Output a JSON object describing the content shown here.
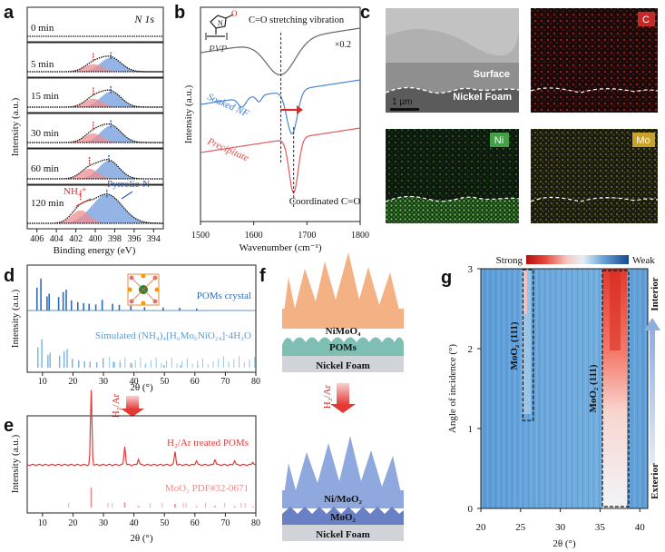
{
  "panel_labels": [
    "a",
    "b",
    "c",
    "d",
    "e",
    "f",
    "g"
  ],
  "panel_a": {
    "title": "N 1s",
    "times": [
      "0 min",
      "5 min",
      "15 min",
      "30 min",
      "60 min",
      "120 min"
    ],
    "peak_labels": [
      "NH₄⁺",
      "Pyrrolic-N"
    ],
    "xlabel": "Binding energy (eV)",
    "ylabel": "Intensity (a.u.)",
    "xticks": [
      "406",
      "404",
      "402",
      "400",
      "398",
      "396",
      "394"
    ]
  },
  "panel_b": {
    "molecule": "PVP",
    "annotation": "C=O stretching vibration",
    "scale": "×0.2",
    "traces": [
      "PVP",
      "Soaked NF",
      "Precipitate"
    ],
    "coord_label": "Coordinated C=O",
    "xlabel": "Wavenumber (cm⁻¹)",
    "ylabel": "Intensity (a.u.)",
    "xticks": [
      "1500",
      "1600",
      "1700",
      "1800"
    ]
  },
  "panel_c": {
    "surface": "Surface",
    "substrate": "Nickel Foam",
    "scalebar": "1 μm",
    "maps": [
      "C",
      "Ni",
      "Mo"
    ]
  },
  "panel_d": {
    "series": [
      "POMs crystal",
      "Simulated (NH₄)₄[H₆Mo₆NiO₂₄]·4H₂O"
    ],
    "ylabel": "Intensity (a.u.)",
    "xlabel": "2θ (°)",
    "xticks": [
      "10",
      "20",
      "30",
      "40",
      "50",
      "60",
      "70",
      "80"
    ]
  },
  "arrow_label": "H₂/Ar",
  "panel_e": {
    "series": [
      "H₂/Ar treated POMs",
      "MoO₂ PDF#32-0671"
    ],
    "ylabel": "Intensity (a.u.)",
    "xlabel": "2θ (°)",
    "xticks": [
      "10",
      "20",
      "30",
      "40",
      "50",
      "60",
      "70",
      "80"
    ]
  },
  "panel_f": {
    "top_layers": [
      "NiMoO₄",
      "POMs",
      "Nickel Foam"
    ],
    "bottom_layers": [
      "Ni/MoO₂",
      "MoO₂",
      "Nickel Foam"
    ]
  },
  "panel_g": {
    "colorbar": [
      "Strong",
      "Weak"
    ],
    "boxes": [
      "MoO₂ (111)",
      "MoO₂ (111)"
    ],
    "ylabel": "Angle of incidence (°)",
    "xlabel": "2θ (°)",
    "xticks": [
      "20",
      "25",
      "30",
      "35",
      "40"
    ],
    "yticks": [
      "0",
      "1",
      "2",
      "3"
    ],
    "side": [
      "Interior",
      "Exterior"
    ]
  },
  "chart_data": [
    {
      "type": "line",
      "panel": "a",
      "title": "N 1s",
      "xlabel": "Binding energy (eV)",
      "ylabel": "Intensity (a.u.)",
      "xlim": [
        407,
        393
      ],
      "series": [
        {
          "name": "0 min",
          "center": []
        },
        {
          "name": "5 min",
          "center": [
            400.2,
            398.4
          ]
        },
        {
          "name": "15 min",
          "center": [
            400.2,
            398.4
          ]
        },
        {
          "name": "30 min",
          "center": [
            400.2,
            398.4
          ]
        },
        {
          "name": "60 min",
          "center": [
            400.6,
            398.6
          ]
        },
        {
          "name": "120 min",
          "center": [
            401.5,
            398.8
          ]
        }
      ]
    },
    {
      "type": "line",
      "panel": "b",
      "xlabel": "Wavenumber (cm⁻¹)",
      "ylabel": "Intensity (a.u.)",
      "xlim": [
        1500,
        1800
      ],
      "series": [
        {
          "name": "PVP",
          "minimum": 1651
        },
        {
          "name": "Soaked NF",
          "minimum": 1672
        },
        {
          "name": "Precipitate",
          "minimum": 1675
        }
      ]
    },
    {
      "type": "bar",
      "panel": "d",
      "xlabel": "2θ (°)",
      "ylabel": "Intensity (a.u.)",
      "xlim": [
        5,
        80
      ],
      "series": [
        {
          "name": "POMs crystal",
          "x": [
            8.2,
            9.5,
            11.5,
            12.2,
            15.3,
            16.8,
            17.8,
            19.5,
            21.6,
            23.5,
            25.3,
            27.5,
            29.6,
            33.0,
            35.2,
            39.0,
            43.5,
            49.6,
            55.0,
            60.6
          ],
          "values": [
            68,
            95,
            42,
            50,
            40,
            55,
            62,
            30,
            25,
            22,
            20,
            18,
            32,
            20,
            17,
            14,
            10,
            9,
            8,
            6
          ]
        }
      ]
    },
    {
      "type": "bar",
      "panel": "e",
      "xlabel": "2θ (°)",
      "ylabel": "Intensity (a.u.)",
      "xlim": [
        5,
        80
      ],
      "series": [
        {
          "name": "H₂/Ar treated POMs",
          "x": [
            26.0,
            37.0,
            41.5,
            53.5,
            60.5,
            66.6,
            73.0,
            79.0
          ],
          "values": [
            100,
            25,
            8,
            18,
            6,
            8,
            6,
            4
          ]
        }
      ]
    },
    {
      "type": "heatmap",
      "panel": "g",
      "xlabel": "2θ (°)",
      "ylabel": "Angle of incidence (°)",
      "xlim": [
        20,
        41
      ],
      "ylim": [
        0,
        3
      ],
      "features": [
        {
          "label": "MoO₂ (111)",
          "x_range": [
            25.3,
            26.6
          ],
          "y_range": [
            1.1,
            3
          ]
        },
        {
          "label": "MoO₂ (111)",
          "x_range": [
            35.3,
            38.6
          ],
          "y_range": [
            0,
            3
          ]
        }
      ]
    }
  ]
}
